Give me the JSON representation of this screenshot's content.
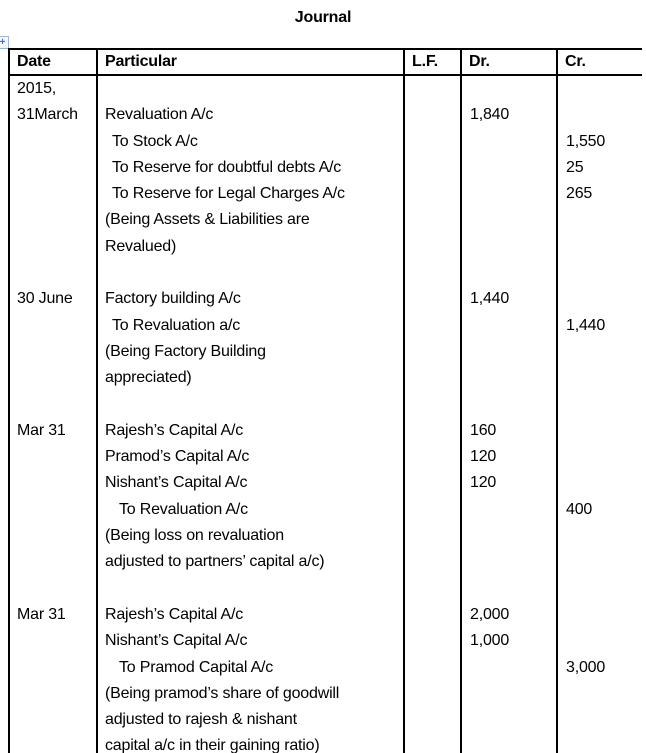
{
  "title": "Journal",
  "icons": {
    "table_move_handle": "+"
  },
  "colors": {
    "border": "#000000",
    "text": "#000000",
    "handle_accent": "#4472c4",
    "background": "#ffffff"
  },
  "table": {
    "headers": {
      "date": "Date",
      "particular": "Particular",
      "lf": "L.F.",
      "dr": "Dr.",
      "cr": "Cr."
    },
    "lines": [
      {
        "date": "2015,",
        "particular": "",
        "lf": "",
        "dr": "",
        "cr": "",
        "indent": 0
      },
      {
        "date": "31March",
        "particular": "Revaluation A/c",
        "lf": "",
        "dr": "1,840",
        "cr": "",
        "indent": 0
      },
      {
        "date": "",
        "particular": "To Stock A/c",
        "lf": "",
        "dr": "",
        "cr": "1,550",
        "indent": 1
      },
      {
        "date": "",
        "particular": "To Reserve for doubtful debts A/c",
        "lf": "",
        "dr": "",
        "cr": "25",
        "indent": 1
      },
      {
        "date": "",
        "particular": "To Reserve for Legal Charges A/c",
        "lf": "",
        "dr": "",
        "cr": "265",
        "indent": 1
      },
      {
        "date": "",
        "particular": "(Being Assets & Liabilities are",
        "lf": "",
        "dr": "",
        "cr": "",
        "indent": 0
      },
      {
        "date": "",
        "particular": "Revalued)",
        "lf": "",
        "dr": "",
        "cr": "",
        "indent": 0
      },
      {
        "date": "",
        "particular": "",
        "lf": "",
        "dr": "",
        "cr": "",
        "indent": 0
      },
      {
        "date": "30 June",
        "particular": "Factory building A/c",
        "lf": "",
        "dr": "1,440",
        "cr": "",
        "indent": 0
      },
      {
        "date": "",
        "particular": "To Revaluation a/c",
        "lf": "",
        "dr": "",
        "cr": "1,440",
        "indent": 1
      },
      {
        "date": "",
        "particular": "(Being Factory Building",
        "lf": "",
        "dr": "",
        "cr": "",
        "indent": 0
      },
      {
        "date": "",
        "particular": "appreciated)",
        "lf": "",
        "dr": "",
        "cr": "",
        "indent": 0
      },
      {
        "date": "",
        "particular": "",
        "lf": "",
        "dr": "",
        "cr": "",
        "indent": 0
      },
      {
        "date": "Mar 31",
        "particular": "Rajesh’s Capital A/c",
        "lf": "",
        "dr": "160",
        "cr": "",
        "indent": 0
      },
      {
        "date": "",
        "particular": "Pramod’s Capital A/c",
        "lf": "",
        "dr": "120",
        "cr": "",
        "indent": 0
      },
      {
        "date": "",
        "particular": "Nishant’s Capital A/c",
        "lf": "",
        "dr": "120",
        "cr": "",
        "indent": 0
      },
      {
        "date": "",
        "particular": "To Revaluation A/c",
        "lf": "",
        "dr": "",
        "cr": "400",
        "indent": 2
      },
      {
        "date": "",
        "particular": "(Being loss on revaluation",
        "lf": "",
        "dr": "",
        "cr": "",
        "indent": 0
      },
      {
        "date": "",
        "particular": "adjusted to partners’ capital a/c)",
        "lf": "",
        "dr": "",
        "cr": "",
        "indent": 0
      },
      {
        "date": "",
        "particular": "",
        "lf": "",
        "dr": "",
        "cr": "",
        "indent": 0
      },
      {
        "date": "Mar 31",
        "particular": "Rajesh’s Capital A/c",
        "lf": "",
        "dr": "2,000",
        "cr": "",
        "indent": 0
      },
      {
        "date": "",
        "particular": "Nishant’s Capital A/c",
        "lf": "",
        "dr": "1,000",
        "cr": "",
        "indent": 0
      },
      {
        "date": "",
        "particular": "To Pramod Capital A/c",
        "lf": "",
        "dr": "",
        "cr": "3,000",
        "indent": 2
      },
      {
        "date": "",
        "particular": "(Being pramod’s share of goodwill",
        "lf": "",
        "dr": "",
        "cr": "",
        "indent": 0
      },
      {
        "date": "",
        "particular": "adjusted to rajesh & nishant",
        "lf": "",
        "dr": "",
        "cr": "",
        "indent": 0
      },
      {
        "date": "",
        "particular": "capital a/c in their gaining ratio)",
        "lf": "",
        "dr": "",
        "cr": "",
        "indent": 0
      }
    ]
  }
}
